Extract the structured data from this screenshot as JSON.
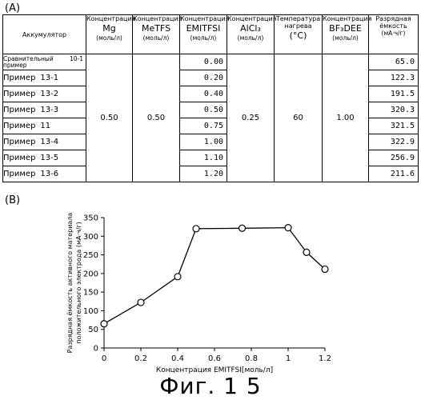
{
  "panel_a_label": "(A)",
  "panel_b_label": "(B)",
  "table": {
    "columns": [
      {
        "top": "",
        "main": "Аккумулятор",
        "unit": ""
      },
      {
        "top": "Концентрация",
        "main": "Mg",
        "unit": "(моль/л)"
      },
      {
        "top": "Концентрация",
        "main": "MeTFS",
        "unit": "(моль/л)"
      },
      {
        "top": "Концентрация",
        "main": "EMITFSI",
        "unit": "(моль/л)"
      },
      {
        "top": "Концентрация",
        "main": "AlCl₃",
        "unit": "(моль/л)"
      },
      {
        "top": "Температура нагрева",
        "main": "(°C)",
        "unit": ""
      },
      {
        "top": "Концентрация",
        "main": "BF₃DEE",
        "unit": "(моль/л)"
      },
      {
        "top": "Разрядная ёмкость",
        "main": "",
        "unit": "(мА·ч/г)"
      }
    ],
    "rows": [
      {
        "name": "Сравнительный пример",
        "num": "10-1",
        "emitfsi": "0.00",
        "capacity": "65.0"
      },
      {
        "name": "Пример",
        "num": "13-1",
        "emitfsi": "0.20",
        "capacity": "122.3"
      },
      {
        "name": "Пример",
        "num": "13-2",
        "emitfsi": "0.40",
        "capacity": "191.5"
      },
      {
        "name": "Пример",
        "num": "13-3",
        "emitfsi": "0.50",
        "capacity": "320.3"
      },
      {
        "name": "Пример",
        "num": "11",
        "emitfsi": "0.75",
        "capacity": "321.5"
      },
      {
        "name": "Пример",
        "num": "13-4",
        "emitfsi": "1.00",
        "capacity": "322.9"
      },
      {
        "name": "Пример",
        "num": "13-5",
        "emitfsi": "1.10",
        "capacity": "256.9"
      },
      {
        "name": "Пример",
        "num": "13-6",
        "emitfsi": "1.20",
        "capacity": "211.6"
      }
    ],
    "shared": {
      "mg": "0.50",
      "metfs": "0.50",
      "alcl3": "0.25",
      "temperature": "60",
      "bf3dee": "1.00"
    }
  },
  "chart_data": {
    "type": "line",
    "xlabel": "Концентрация EMITFSI[моль/л]",
    "ylabel_line1": "Разрядная ёмкость активного материала",
    "ylabel_line2": "положительного электрода (мА·ч/г)",
    "xlim": [
      0,
      1.2
    ],
    "ylim": [
      0,
      350
    ],
    "xticks": [
      "0",
      "0.2",
      "0.4",
      "0.6",
      "0.8",
      "1",
      "1.2"
    ],
    "yticks": [
      "0",
      "50",
      "100",
      "150",
      "200",
      "250",
      "300",
      "350"
    ],
    "x": [
      0.0,
      0.2,
      0.4,
      0.5,
      0.75,
      1.0,
      1.1,
      1.2
    ],
    "y": [
      65.0,
      122.3,
      191.5,
      320.3,
      321.5,
      322.9,
      256.9,
      211.6
    ],
    "marker": "open-circle",
    "line_color": "#000000",
    "grid": false
  },
  "figure_caption": "Фиг. 1 5"
}
